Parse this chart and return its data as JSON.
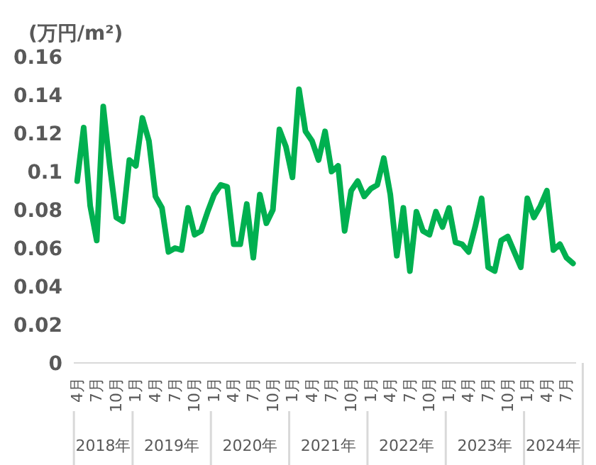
{
  "chart_data": {
    "type": "line",
    "ylabel": "(万円/m²)",
    "x": [
      "2018-04",
      "2018-05",
      "2018-06",
      "2018-07",
      "2018-08",
      "2018-09",
      "2018-10",
      "2018-11",
      "2018-12",
      "2019-01",
      "2019-02",
      "2019-03",
      "2019-04",
      "2019-05",
      "2019-06",
      "2019-07",
      "2019-08",
      "2019-09",
      "2019-10",
      "2019-11",
      "2019-12",
      "2020-01",
      "2020-02",
      "2020-03",
      "2020-04",
      "2020-05",
      "2020-06",
      "2020-07",
      "2020-08",
      "2020-09",
      "2020-10",
      "2020-11",
      "2020-12",
      "2021-01",
      "2021-02",
      "2021-03",
      "2021-04",
      "2021-05",
      "2021-06",
      "2021-07",
      "2021-08",
      "2021-09",
      "2021-10",
      "2021-11",
      "2021-12",
      "2022-01",
      "2022-02",
      "2022-03",
      "2022-04",
      "2022-05",
      "2022-06",
      "2022-07",
      "2022-08",
      "2022-09",
      "2022-10",
      "2022-11",
      "2022-12",
      "2023-01",
      "2023-02",
      "2023-03",
      "2023-04",
      "2023-05",
      "2023-06",
      "2023-07",
      "2023-08",
      "2023-09",
      "2023-10",
      "2023-11",
      "2023-12",
      "2024-01",
      "2024-02",
      "2024-03",
      "2024-04",
      "2024-05",
      "2024-06",
      "2024-07",
      "2024-08"
    ],
    "series": [
      {
        "color": "#00b050",
        "values": [
          0.095,
          0.123,
          0.082,
          0.064,
          0.134,
          0.103,
          0.076,
          0.074,
          0.106,
          0.103,
          0.128,
          0.116,
          0.087,
          0.081,
          0.058,
          0.06,
          0.059,
          0.081,
          0.067,
          0.069,
          0.079,
          0.088,
          0.093,
          0.092,
          0.062,
          0.062,
          0.083,
          0.055,
          0.088,
          0.073,
          0.08,
          0.122,
          0.113,
          0.097,
          0.143,
          0.121,
          0.116,
          0.106,
          0.121,
          0.1,
          0.103,
          0.069,
          0.09,
          0.095,
          0.087,
          0.091,
          0.093,
          0.107,
          0.088,
          0.056,
          0.081,
          0.048,
          0.079,
          0.069,
          0.067,
          0.079,
          0.071,
          0.081,
          0.063,
          0.062,
          0.058,
          0.071,
          0.086,
          0.05,
          0.048,
          0.064,
          0.066,
          0.058,
          0.05,
          0.086,
          0.076,
          0.082,
          0.09,
          0.059,
          0.062,
          0.055,
          0.052
        ]
      }
    ],
    "xlim": [
      "2018-03-16",
      "2024-08-16"
    ],
    "ylim": [
      0,
      0.16
    ],
    "yticks": [
      0,
      0.02,
      0.04,
      0.06,
      0.08,
      0.1,
      0.12,
      0.14,
      0.16
    ],
    "xticks": [
      {
        "value": "2018-04",
        "label": "4月"
      },
      {
        "value": "2018-07",
        "label": "7月"
      },
      {
        "value": "2018-10",
        "label": "10月"
      },
      {
        "value": "2019-01",
        "label": "1月"
      },
      {
        "value": "2019-04",
        "label": "4月"
      },
      {
        "value": "2019-07",
        "label": "7月"
      },
      {
        "value": "2019-10",
        "label": "10月"
      },
      {
        "value": "2020-01",
        "label": "1月"
      },
      {
        "value": "2020-04",
        "label": "4月"
      },
      {
        "value": "2020-07",
        "label": "7月"
      },
      {
        "value": "2020-10",
        "label": "10月"
      },
      {
        "value": "2021-01",
        "label": "1月"
      },
      {
        "value": "2021-04",
        "label": "4月"
      },
      {
        "value": "2021-07",
        "label": "7月"
      },
      {
        "value": "2021-10",
        "label": "10月"
      },
      {
        "value": "2022-01",
        "label": "1月"
      },
      {
        "value": "2022-04",
        "label": "4月"
      },
      {
        "value": "2022-07",
        "label": "7月"
      },
      {
        "value": "2022-10",
        "label": "10月"
      },
      {
        "value": "2023-01",
        "label": "1月"
      },
      {
        "value": "2023-04",
        "label": "4月"
      },
      {
        "value": "2023-07",
        "label": "7月"
      },
      {
        "value": "2023-10",
        "label": "10月"
      },
      {
        "value": "2024-01",
        "label": "1月"
      },
      {
        "value": "2024-04",
        "label": "4月"
      },
      {
        "value": "2024-07",
        "label": "7月"
      }
    ],
    "annotations": [
      "2018年",
      "2019年",
      "2020年",
      "2021年",
      "2022年",
      "2023年",
      "2024年"
    ],
    "grid": false,
    "legend": false,
    "marker": "none",
    "line_style": "solid"
  }
}
